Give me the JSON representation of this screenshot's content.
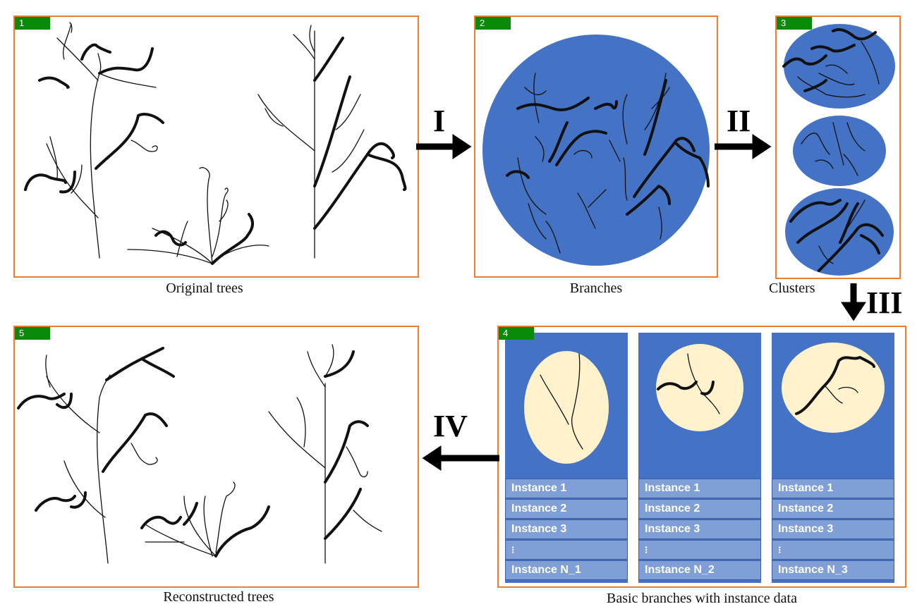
{
  "panels": {
    "p1": {
      "badge": "1",
      "caption": "Original trees"
    },
    "p2": {
      "badge": "2",
      "caption": "Branches"
    },
    "p3": {
      "badge": "3",
      "caption": "Clusters"
    },
    "p4": {
      "badge": "4",
      "caption": "Basic branches with instance data"
    },
    "p5": {
      "badge": "5",
      "caption": "Reconstructed trees"
    }
  },
  "steps": {
    "s1": "I",
    "s2": "II",
    "s3": "III",
    "s4": "IV"
  },
  "instances": {
    "c1": [
      "Instance 1",
      "Instance 2",
      "Instance 3",
      "Instance N_1"
    ],
    "c2": [
      "Instance 1",
      "Instance 2",
      "Instance 3",
      "Instance N_2"
    ],
    "c3": [
      "Instance 1",
      "Instance 2",
      "Instance 3",
      "Instance N_3"
    ]
  },
  "colors": {
    "panel_border": "#ed7d31",
    "cluster_blue": "#4472c4",
    "badge_green": "#0a8a0a",
    "cream": "#fff2cc"
  }
}
